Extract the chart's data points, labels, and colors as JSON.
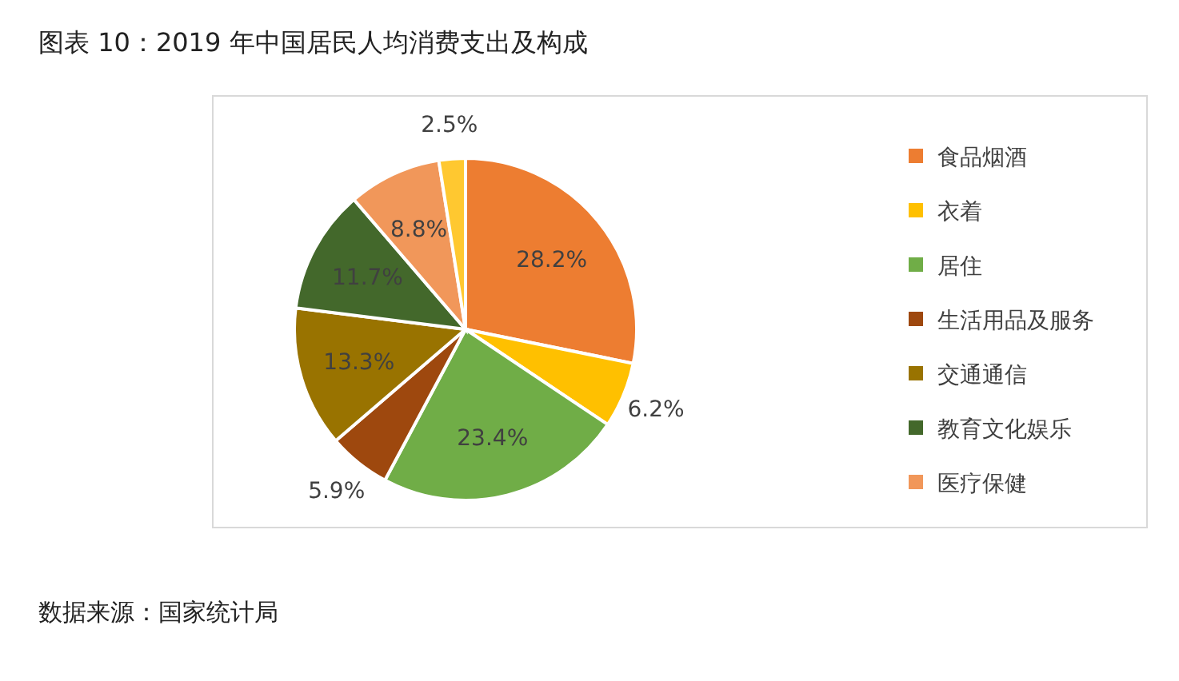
{
  "chart_data": {
    "type": "pie",
    "title": "图表 10：2019 年中国居民人均消费支出及构成",
    "categories": [
      "食品烟酒",
      "衣着",
      "居住",
      "生活用品及服务",
      "交通通信",
      "教育文化娱乐",
      "医疗保健",
      null
    ],
    "values": [
      28.2,
      6.2,
      23.4,
      5.9,
      13.3,
      11.7,
      8.8,
      2.5
    ],
    "colors": [
      "#ed7d31",
      "#ffc000",
      "#70ad47",
      "#9e480e",
      "#997300",
      "#43682b",
      "#f1975a",
      "#ffc830"
    ],
    "value_labels": [
      "28.2%",
      "6.2%",
      "23.4%",
      "5.9%",
      "13.3%",
      "11.7%",
      "8.8%",
      "2.5%"
    ],
    "legend": "right",
    "annotations": [
      "数据来源：国家统计局"
    ]
  }
}
